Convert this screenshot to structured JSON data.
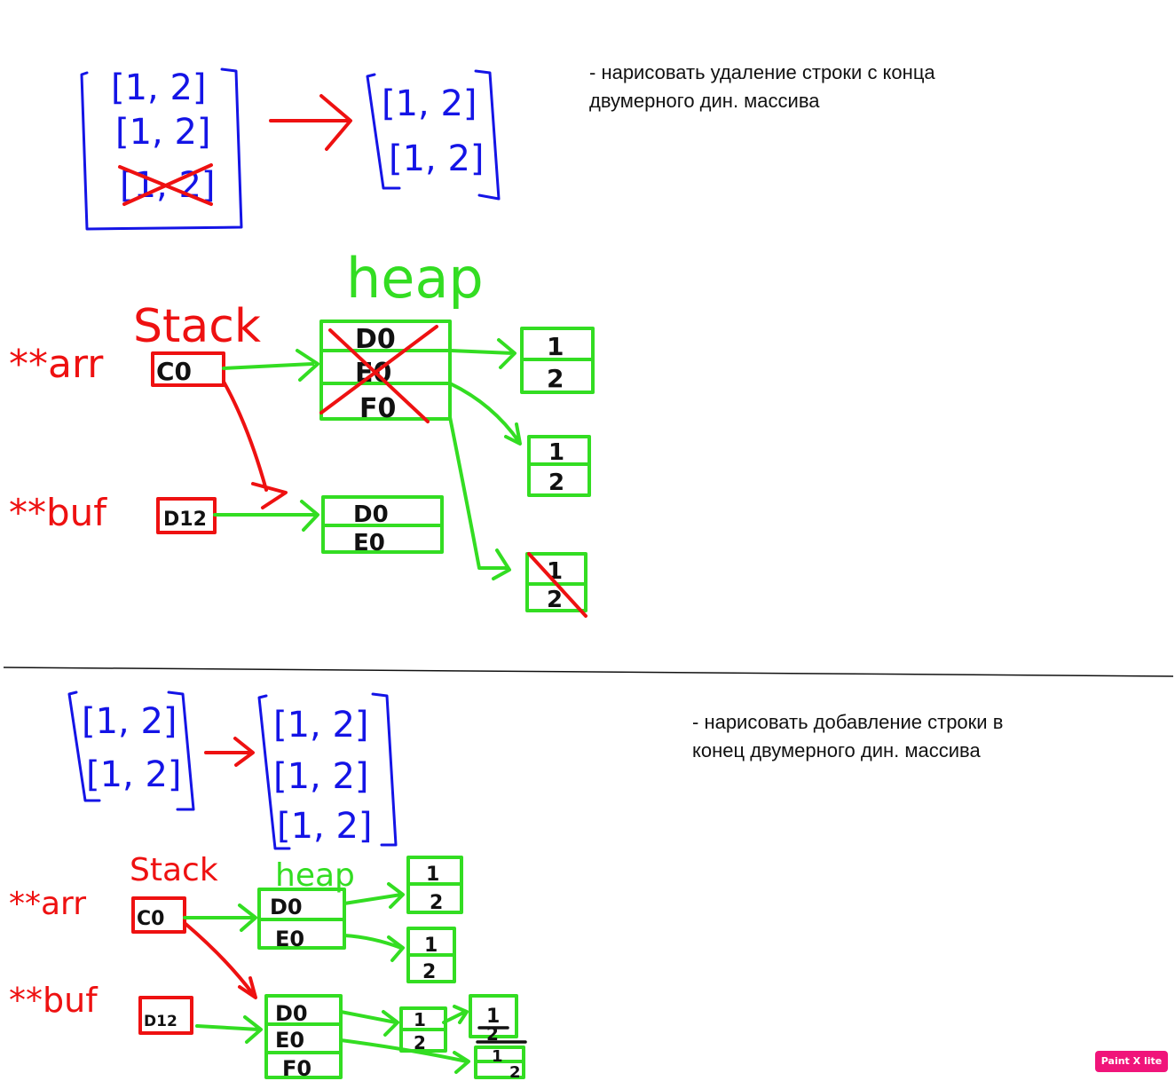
{
  "notes": {
    "delete_row": "- нарисовать удаление строки с конца\nдвумерного дин. массива",
    "add_row": "- нарисовать добавление строки в\nконец двумерного дин. массива"
  },
  "labels": {
    "row": "[1, 2]",
    "stack": "Stack",
    "stack_small": "Stack",
    "heap": "heap",
    "heap_small": "heap",
    "arr": "**arr",
    "buf": "**buf",
    "ptr_c0": "C0",
    "ptr_d12": "D12",
    "cell_d0": "D0",
    "cell_e0": "E0",
    "cell_f0": "F0",
    "val_1": "1",
    "val_2": "2"
  },
  "badge": {
    "text": "Paint X lite"
  },
  "colors": {
    "matrix": "#1414e6",
    "stack": "#ee1111",
    "heap": "#33dd22",
    "ink": "#111111"
  }
}
